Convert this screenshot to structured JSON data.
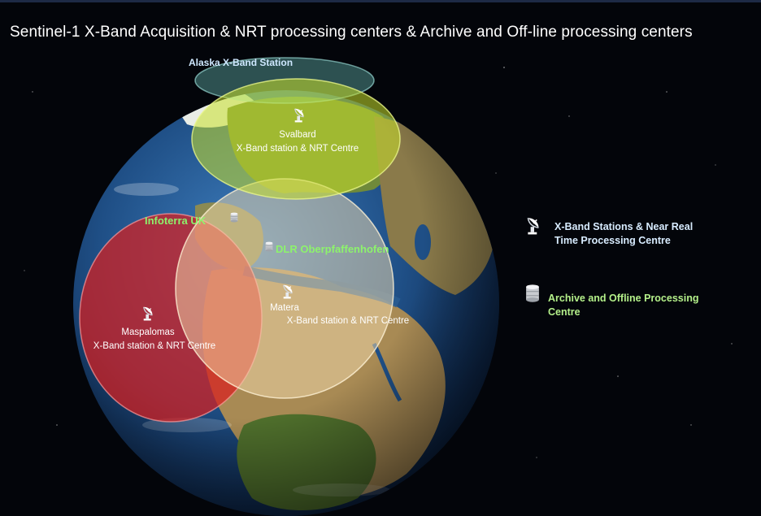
{
  "title": "Sentinel-1 X-Band Acquisition & NRT processing centers & Archive and Off-line processing centers",
  "stations": {
    "alaska": {
      "label": "Alaska X-Band Station"
    },
    "svalbard": {
      "name": "Svalbard",
      "desc": "X-Band station & NRT Centre"
    },
    "matera": {
      "name": "Matera",
      "desc": "X-Band station & NRT Centre"
    },
    "maspalomas": {
      "name": "Maspalomas",
      "desc": "X-Band station & NRT Centre"
    }
  },
  "archive_centres": {
    "infoterra": {
      "label": "Infoterra UK"
    },
    "dlr": {
      "label": "DLR Oberpfaffenhofen"
    }
  },
  "legend": {
    "xband_line1": "X-Band Stations & Near Real",
    "xband_line2": "Time Processing Centre",
    "archive_line1": "Archive and Offline Processing",
    "archive_line2": "Centre"
  },
  "colors": {
    "svalbard_coverage": "#c8e02a",
    "matera_coverage": "#f3dcae",
    "maspalomas_coverage": "#d81f1f",
    "alaska_coverage": "#7fe0d8",
    "archive_label": "#8df36c",
    "xband_legend_text": "#d8ecff"
  },
  "icons": {
    "station": "satellite-dish-icon",
    "archive": "database-cylinder-icon"
  }
}
